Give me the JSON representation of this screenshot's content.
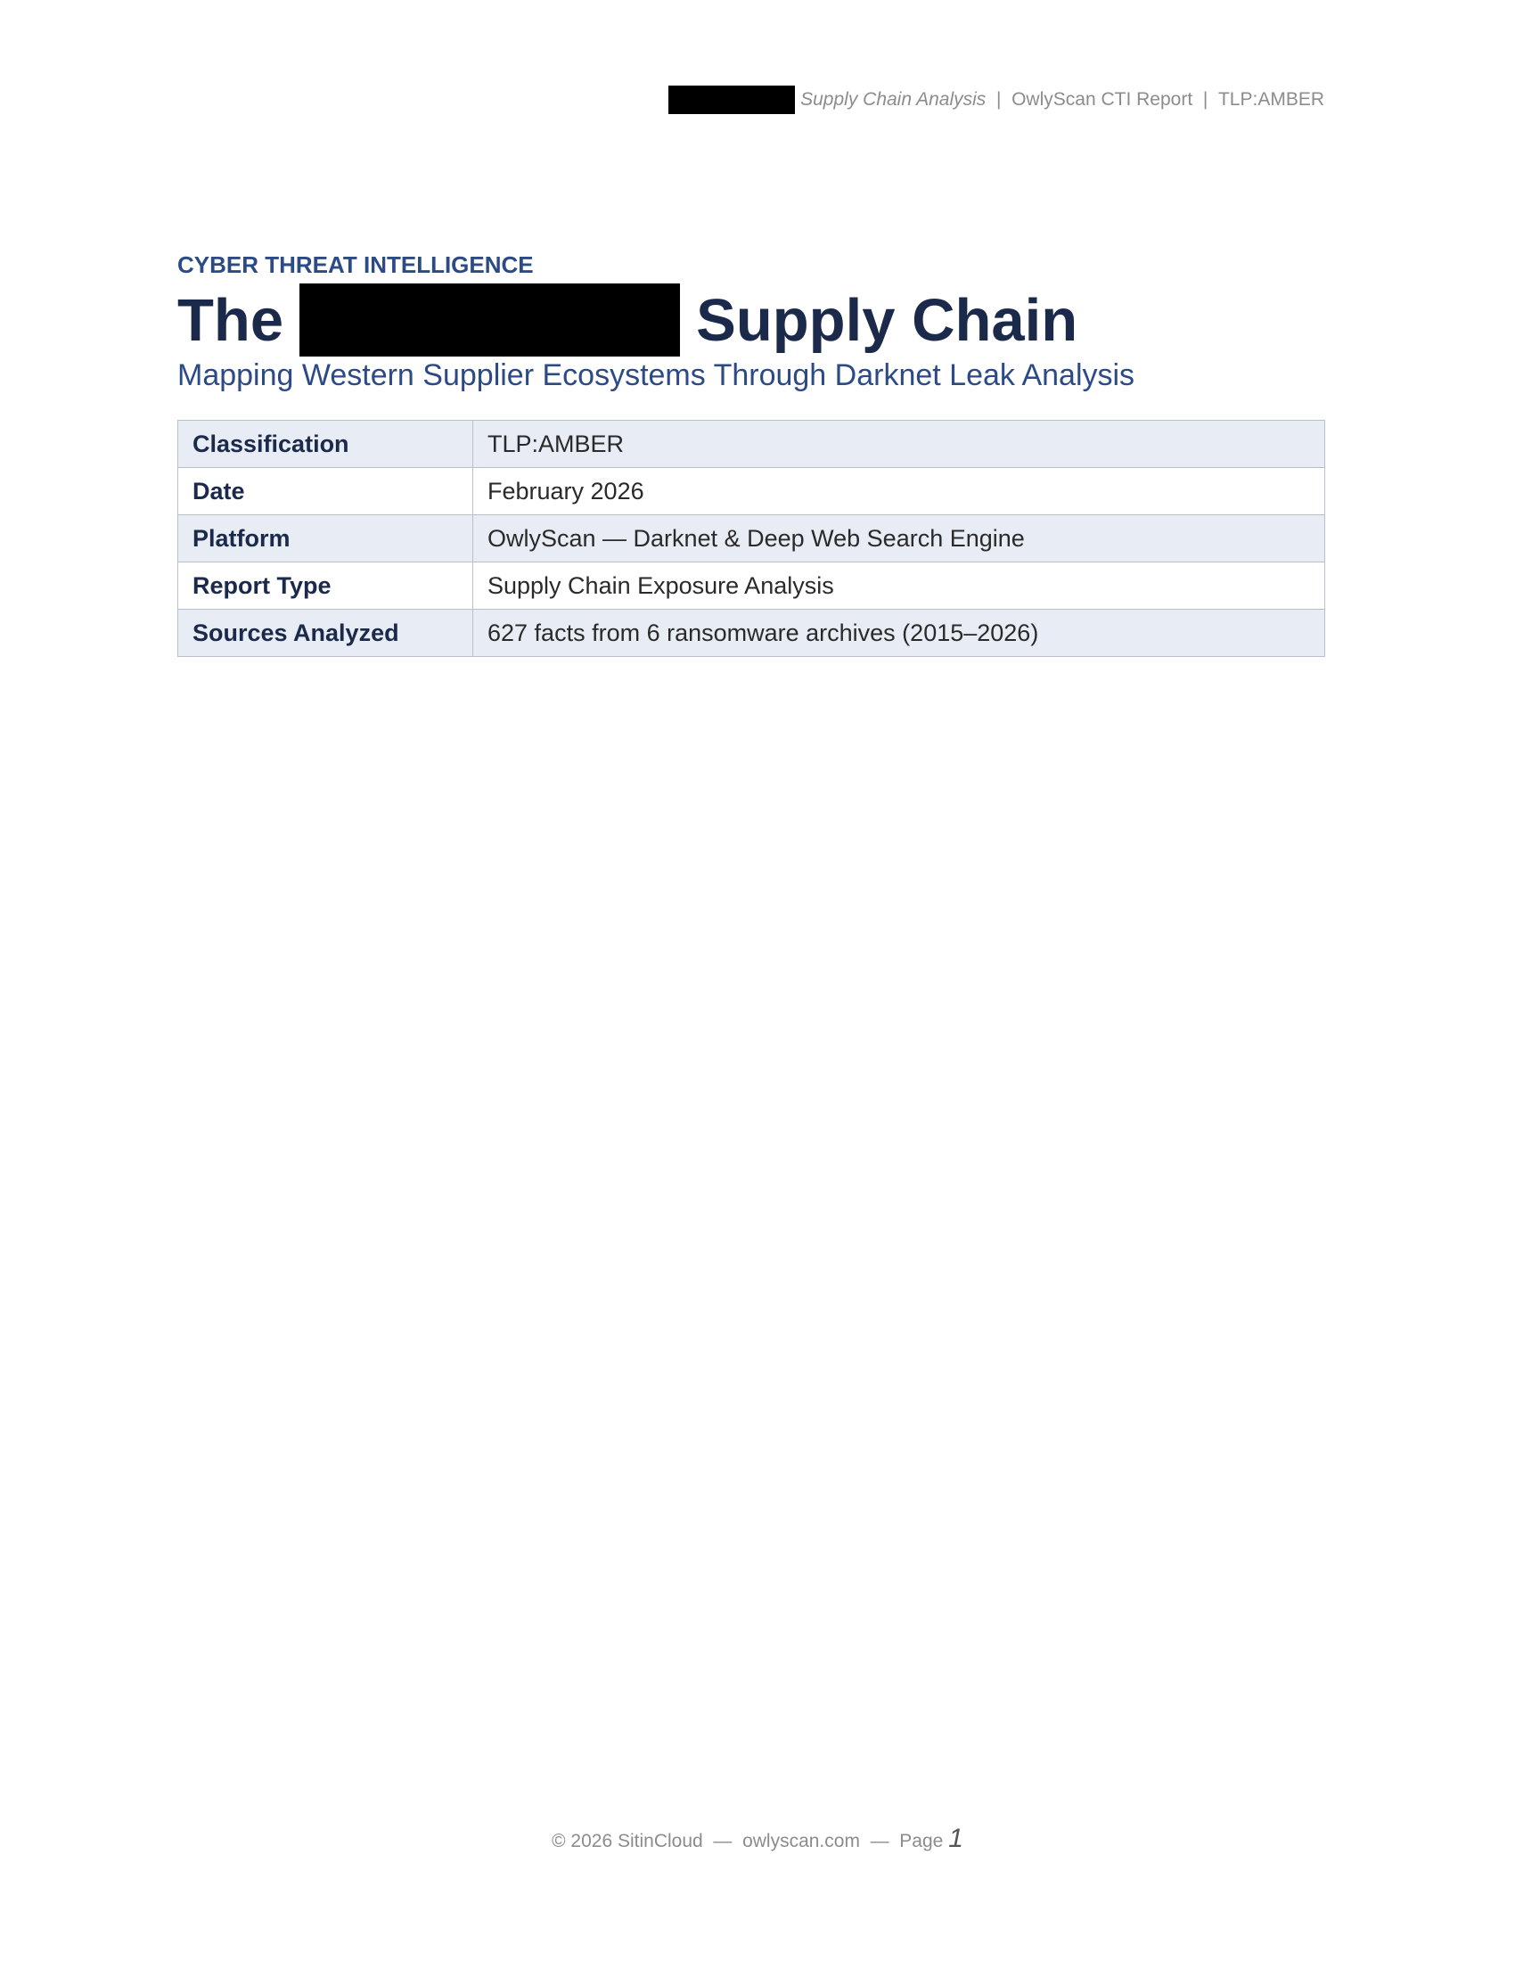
{
  "header": {
    "report_name": "Supply Chain Analysis",
    "separator": "|",
    "product": "OwlyScan CTI Report",
    "tlp": "TLP:AMBER"
  },
  "kicker": "CYBER THREAT INTELLIGENCE",
  "title": {
    "prefix": "The",
    "suffix": "Supply Chain"
  },
  "subtitle": "Mapping Western Supplier Ecosystems Through Darknet Leak Analysis",
  "meta_table": [
    {
      "label": "Classification",
      "value": "TLP:AMBER"
    },
    {
      "label": "Date",
      "value": "February 2026"
    },
    {
      "label": "Platform",
      "value": "OwlyScan — Darknet & Deep Web Search Engine"
    },
    {
      "label": "Report Type",
      "value": "Supply Chain Exposure Analysis"
    },
    {
      "label": "Sources Analyzed",
      "value": "627 facts from 6 ransomware archives (2015–2026)"
    }
  ],
  "footer": {
    "copyright": "© 2026 SitinCloud",
    "dash": "—",
    "site": "owlyscan.com",
    "page_label": "Page",
    "page_number": "1"
  },
  "colors": {
    "accent": "#2c4a86",
    "title": "#1b2a4a",
    "row_shade": "#e8edf5",
    "muted": "#8c8c8c"
  }
}
